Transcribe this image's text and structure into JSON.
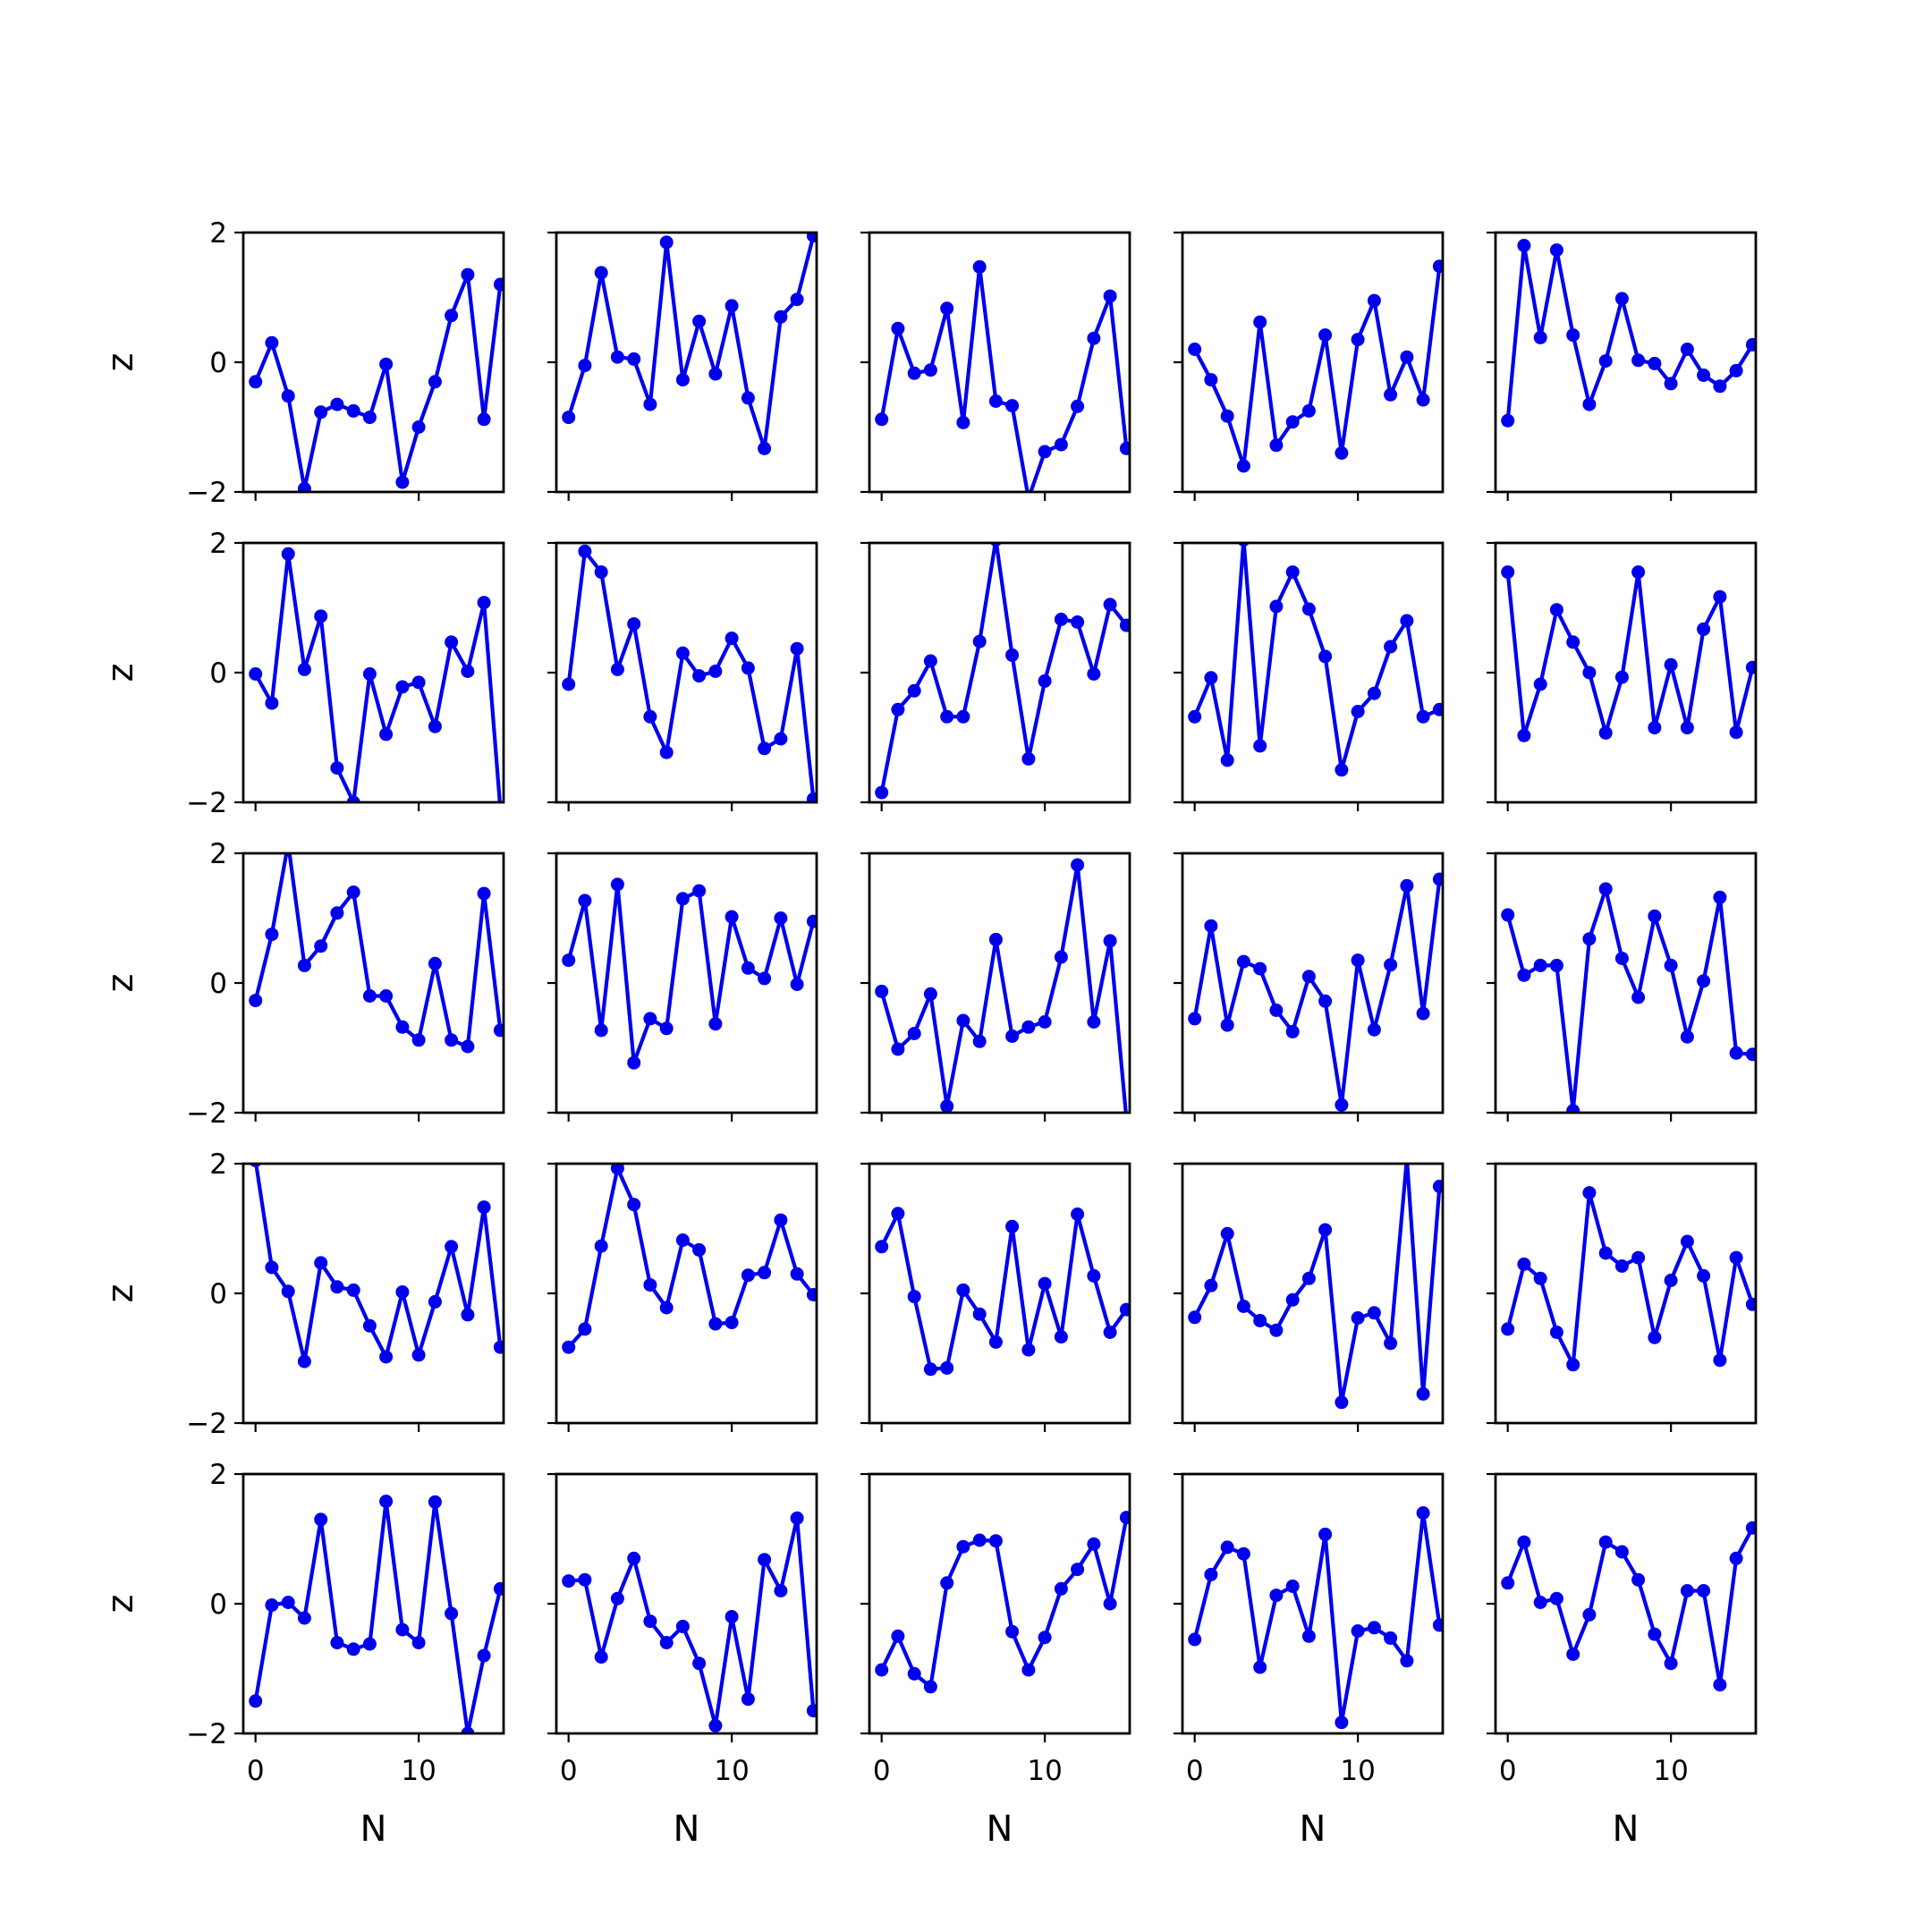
{
  "chart_data": {
    "type": "line",
    "layout": {
      "rows": 5,
      "cols": 5
    },
    "xlabel": "N",
    "ylabel": "z",
    "xlim": [
      -0.75,
      15.2
    ],
    "ylim": [
      -2,
      2
    ],
    "xticks": [
      0,
      10
    ],
    "yticks": [
      -2,
      0,
      2
    ],
    "tick_labels": {
      "x": [
        "0",
        "10"
      ],
      "y": [
        "−2",
        "0",
        "2"
      ]
    },
    "colors": {
      "series": "#0000ee"
    },
    "x": [
      0,
      1,
      2,
      3,
      4,
      5,
      6,
      7,
      8,
      9,
      10,
      11,
      12,
      13,
      14,
      15
    ],
    "panels": [
      {
        "values": [
          -0.3,
          0.3,
          -0.52,
          -1.95,
          -0.77,
          -0.65,
          -0.75,
          -0.85,
          -0.03,
          -1.85,
          -1.0,
          -0.3,
          0.72,
          1.35,
          -0.88,
          1.2
        ]
      },
      {
        "values": [
          -0.85,
          -0.05,
          1.38,
          0.08,
          0.05,
          -0.65,
          1.85,
          -0.27,
          0.63,
          -0.18,
          0.87,
          -0.55,
          -1.33,
          0.7,
          0.97,
          1.95
        ]
      },
      {
        "values": [
          -0.88,
          0.52,
          -0.17,
          -0.12,
          0.83,
          -0.93,
          1.47,
          -0.6,
          -0.67,
          -2.1,
          -1.38,
          -1.27,
          -0.68,
          0.37,
          1.02,
          -1.33
        ]
      },
      {
        "values": [
          0.2,
          -0.27,
          -0.83,
          -1.6,
          0.62,
          -1.28,
          -0.92,
          -0.75,
          0.42,
          -1.4,
          0.35,
          0.95,
          -0.5,
          0.08,
          -0.58,
          1.48
        ]
      },
      {
        "values": [
          -0.9,
          1.8,
          0.38,
          1.73,
          0.42,
          -0.65,
          0.02,
          0.98,
          0.03,
          -0.02,
          -0.33,
          0.2,
          -0.2,
          -0.37,
          -0.13,
          0.27
        ]
      },
      {
        "values": [
          -0.02,
          -0.47,
          1.83,
          0.05,
          0.87,
          -1.47,
          -2.0,
          -0.02,
          -0.95,
          -0.22,
          -0.15,
          -0.83,
          0.47,
          0.02,
          1.08,
          -2.1
        ]
      },
      {
        "values": [
          -0.18,
          1.87,
          1.55,
          0.05,
          0.75,
          -0.68,
          -1.23,
          0.3,
          -0.05,
          0.02,
          0.53,
          0.07,
          -1.17,
          -1.02,
          0.37,
          -1.95
        ]
      },
      {
        "values": [
          -1.85,
          -0.57,
          -0.28,
          0.18,
          -0.68,
          -0.68,
          0.48,
          2.05,
          0.27,
          -1.33,
          -0.13,
          0.82,
          0.78,
          -0.02,
          1.05,
          0.73
        ]
      },
      {
        "values": [
          -0.68,
          -0.08,
          -1.35,
          2.05,
          -1.13,
          1.02,
          1.55,
          0.98,
          0.25,
          -1.5,
          -0.6,
          -0.32,
          0.4,
          0.8,
          -0.68,
          -0.57
        ]
      },
      {
        "values": [
          1.55,
          -0.97,
          -0.18,
          0.97,
          0.47,
          0.0,
          -0.93,
          -0.07,
          1.55,
          -0.85,
          0.12,
          -0.85,
          0.67,
          1.17,
          -0.92,
          0.08
        ]
      },
      {
        "values": [
          -0.27,
          0.75,
          2.15,
          0.27,
          0.57,
          1.08,
          1.4,
          -0.2,
          -0.2,
          -0.68,
          -0.88,
          0.3,
          -0.88,
          -0.98,
          1.38,
          -0.73
        ]
      },
      {
        "values": [
          0.35,
          1.27,
          -0.73,
          1.52,
          -1.23,
          -0.55,
          -0.7,
          1.3,
          1.42,
          -0.63,
          1.02,
          0.23,
          0.07,
          1.0,
          -0.02,
          0.95
        ]
      },
      {
        "values": [
          -0.13,
          -1.02,
          -0.78,
          -0.17,
          -1.9,
          -0.58,
          -0.9,
          0.67,
          -0.82,
          -0.68,
          -0.6,
          0.4,
          1.82,
          -0.6,
          0.65,
          -2.1
        ]
      },
      {
        "values": [
          -0.55,
          0.88,
          -0.65,
          0.33,
          0.22,
          -0.42,
          -0.75,
          0.1,
          -0.28,
          -1.88,
          0.35,
          -0.72,
          0.28,
          1.5,
          -0.47,
          1.6
        ]
      },
      {
        "values": [
          1.05,
          0.12,
          0.27,
          0.27,
          -1.97,
          0.68,
          1.45,
          0.38,
          -0.22,
          1.03,
          0.27,
          -0.83,
          0.03,
          1.32,
          -1.08,
          -1.1
        ]
      },
      {
        "values": [
          2.05,
          0.4,
          0.03,
          -1.05,
          0.47,
          0.1,
          0.05,
          -0.5,
          -0.98,
          0.02,
          -0.95,
          -0.13,
          0.72,
          -0.33,
          1.33,
          -0.83
        ]
      },
      {
        "values": [
          -0.83,
          -0.55,
          0.73,
          1.93,
          1.37,
          0.13,
          -0.22,
          0.82,
          0.67,
          -0.47,
          -0.45,
          0.28,
          0.32,
          1.13,
          0.3,
          -0.02
        ]
      },
      {
        "values": [
          0.72,
          1.23,
          -0.05,
          -1.17,
          -1.15,
          0.05,
          -0.32,
          -0.75,
          1.03,
          -0.87,
          0.15,
          -0.67,
          1.22,
          0.27,
          -0.6,
          -0.25
        ]
      },
      {
        "values": [
          -0.37,
          0.12,
          0.92,
          -0.2,
          -0.42,
          -0.57,
          -0.1,
          0.23,
          0.98,
          -1.68,
          -0.38,
          -0.3,
          -0.77,
          2.08,
          -1.55,
          1.65
        ]
      },
      {
        "values": [
          -0.55,
          0.45,
          0.23,
          -0.6,
          -1.1,
          1.55,
          0.62,
          0.42,
          0.55,
          -0.68,
          0.2,
          0.8,
          0.27,
          -1.03,
          0.55,
          -0.17
        ]
      },
      {
        "values": [
          -1.5,
          -0.02,
          0.02,
          -0.22,
          1.3,
          -0.6,
          -0.7,
          -0.62,
          1.58,
          -0.4,
          -0.6,
          1.57,
          -0.15,
          -2.0,
          -0.8,
          0.23
        ]
      },
      {
        "values": [
          0.35,
          0.37,
          -0.82,
          0.08,
          0.7,
          -0.27,
          -0.6,
          -0.35,
          -0.92,
          -1.88,
          -0.2,
          -1.47,
          0.68,
          0.2,
          1.32,
          -1.65
        ]
      },
      {
        "values": [
          -1.02,
          -0.5,
          -1.08,
          -1.28,
          0.32,
          0.88,
          0.98,
          0.97,
          -0.43,
          -1.02,
          -0.52,
          0.23,
          0.53,
          0.92,
          0.0,
          1.33
        ]
      },
      {
        "values": [
          -0.55,
          0.45,
          0.87,
          0.77,
          -0.98,
          0.13,
          0.27,
          -0.5,
          1.07,
          -1.83,
          -0.42,
          -0.37,
          -0.53,
          -0.88,
          1.4,
          -0.33
        ]
      },
      {
        "values": [
          0.32,
          0.95,
          0.02,
          0.08,
          -0.78,
          -0.17,
          0.95,
          0.8,
          0.37,
          -0.47,
          -0.92,
          0.2,
          0.2,
          -1.25,
          0.7,
          1.17
        ]
      }
    ]
  }
}
